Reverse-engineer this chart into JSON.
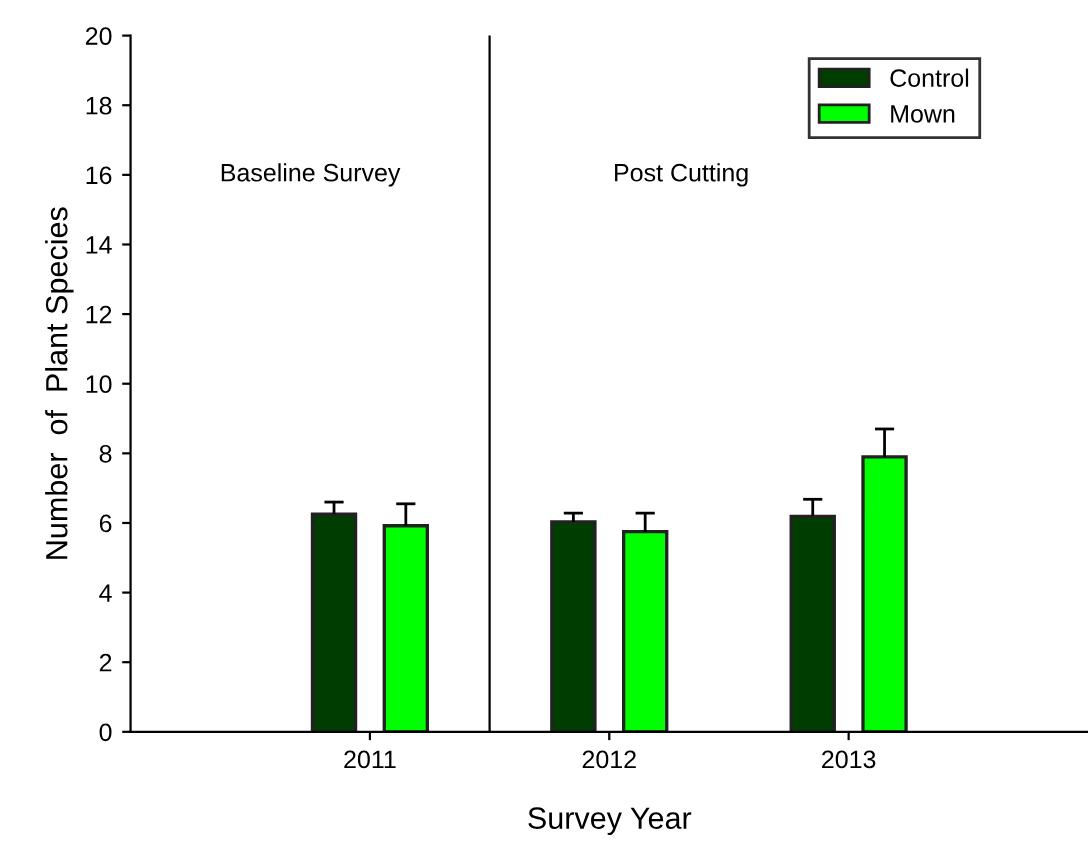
{
  "chart_data": {
    "type": "bar",
    "xlabel": "Survey Year",
    "ylabel": "Number  of  Plant Species",
    "x": [
      2011,
      2012,
      2013
    ],
    "xlim": [
      2010,
      2014
    ],
    "xticks": [
      2011,
      2012,
      2013
    ],
    "ylim": [
      0,
      20
    ],
    "yticks": [
      0,
      2,
      4,
      6,
      8,
      10,
      12,
      14,
      16,
      18,
      20
    ],
    "series": [
      {
        "name": "Control",
        "color": "#003d00",
        "values": [
          6.25,
          6.03,
          6.19
        ],
        "errors": [
          [
            6.25,
            6.6
          ],
          [
            6.03,
            6.28
          ],
          [
            6.19,
            6.68
          ]
        ]
      },
      {
        "name": "Mown",
        "color": "#00ff00",
        "values": [
          5.92,
          5.75,
          7.9
        ],
        "errors": [
          [
            5.92,
            6.55
          ],
          [
            5.75,
            6.28
          ],
          [
            7.9,
            8.7
          ]
        ]
      }
    ],
    "ref_lines": [
      {
        "axis": "x",
        "value": 2011.5,
        "color": "#000000"
      }
    ],
    "annotations": [
      "Baseline Survey",
      "Post Cutting"
    ],
    "legend": "top right",
    "grid": false
  }
}
